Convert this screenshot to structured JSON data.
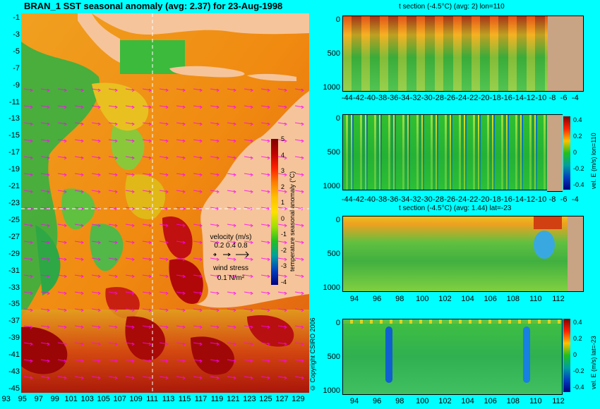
{
  "map": {
    "title": "BRAN_1  SST seasonal anomaly  (avg: 2.37)  for 23-Aug-1998",
    "lat_labels": [
      "-1",
      "-3",
      "-5",
      "-7",
      "-9",
      "-11",
      "-13",
      "-15",
      "-17",
      "-19",
      "-21",
      "-23",
      "-25",
      "-27",
      "-29",
      "-31",
      "-33",
      "-35",
      "-37",
      "-39",
      "-41",
      "-43",
      "-45"
    ],
    "lon_labels": [
      "93",
      "95",
      "97",
      "99",
      "101",
      "103",
      "105",
      "107",
      "109",
      "111",
      "113",
      "115",
      "117",
      "119",
      "121",
      "123",
      "125",
      "127",
      "129"
    ],
    "colorbar": {
      "label": "temperature seasonal anomaly (°C)",
      "ticks": [
        "5",
        "4",
        "3",
        "2",
        "1",
        "0",
        "-1",
        "-2",
        "-3",
        "-4"
      ]
    },
    "velocity_legend": {
      "title": "velocity (m/s)",
      "values": "0.2 0.4 0.8",
      "wind_title": "wind stress",
      "wind_value": "0.1 N/m²"
    },
    "copyright": "© Copyright CSIRO 2006",
    "colors": {
      "background": "#00ffff",
      "land": "#f6c49a",
      "vector": "#ff00ff",
      "section_land": "#c8a484"
    }
  },
  "panels": [
    {
      "title": "t section (-4.5°C) (avg: 2) lon=110",
      "y_ticks": [
        "0",
        "500",
        "1000"
      ],
      "x_ticks": [
        "-44",
        "-42",
        "-40",
        "-38",
        "-36",
        "-34",
        "-32",
        "-30",
        "-28",
        "-26",
        "-24",
        "-22",
        "-20",
        "-18",
        "-16",
        "-14",
        "-12",
        "-10",
        "-8",
        "-6",
        "-4"
      ]
    },
    {
      "title": "",
      "y_ticks": [
        "0",
        "500",
        "1000"
      ],
      "x_ticks": [
        "-44",
        "-42",
        "-40",
        "-38",
        "-36",
        "-34",
        "-32",
        "-30",
        "-28",
        "-26",
        "-24",
        "-22",
        "-20",
        "-18",
        "-16",
        "-14",
        "-12",
        "-10",
        "-8",
        "-6",
        "-4"
      ],
      "colorbar_ticks": [
        "0.4",
        "0.2",
        "0",
        "-0.2",
        "-0.4"
      ],
      "colorbar_label": "vel. E (m/s) lon=110"
    },
    {
      "title": "t section (-4.5°C) (avg: 1.44) lat=-23",
      "y_ticks": [
        "0",
        "500",
        "1000"
      ],
      "x_ticks": [
        "94",
        "96",
        "98",
        "100",
        "102",
        "104",
        "106",
        "108",
        "110",
        "112"
      ]
    },
    {
      "title": "",
      "y_ticks": [
        "0",
        "500",
        "1000"
      ],
      "x_ticks": [
        "94",
        "96",
        "98",
        "100",
        "102",
        "104",
        "106",
        "108",
        "110",
        "112"
      ],
      "colorbar_ticks": [
        "0.4",
        "0.2",
        "0",
        "-0.2",
        "-0.4"
      ],
      "colorbar_label": "vel. E (m/s) lat=-23"
    }
  ]
}
